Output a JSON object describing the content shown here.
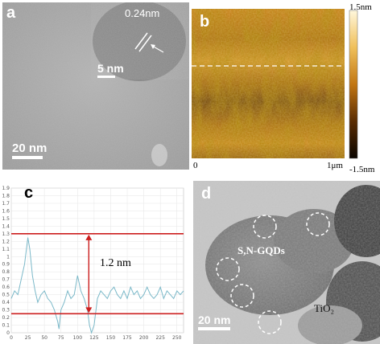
{
  "panel_a": {
    "label": "a",
    "lattice_label": "0.24nm",
    "inset_scale": "5 nm",
    "scale": "20 nm"
  },
  "panel_b": {
    "label": "b",
    "cbar_max": "1.5nm",
    "cbar_min": "-1.5nm",
    "axis_start": "0",
    "axis_end": "1μm"
  },
  "panel_c": {
    "label": "c",
    "annotation": "1.2 nm"
  },
  "panel_d": {
    "label": "d",
    "qd_label": "S,N-GQDs",
    "tio2_label": "TiO₂",
    "scale": "20 nm"
  },
  "chart_data": {
    "type": "line",
    "yticks": [
      "1.9",
      "1.8",
      "1.7",
      "1.6",
      "1.5",
      "1.4",
      "1.3",
      "1.2",
      "1.1",
      "1",
      "0.9",
      "0.8",
      "0.7",
      "0.6",
      "0.5",
      "0.4",
      "0.3",
      "0.2",
      "0.1",
      "0"
    ],
    "xticks": [
      "0",
      "25",
      "50",
      "75",
      "100",
      "125",
      "150",
      "175",
      "200",
      "225",
      "250"
    ],
    "xlim": [
      0,
      260
    ],
    "ylim": [
      0,
      1.9
    ],
    "upper_line": 1.3,
    "lower_line": 0.25,
    "series": [
      {
        "color": "#7ab8c8",
        "x": [
          0,
          5,
          10,
          15,
          20,
          25,
          28,
          32,
          36,
          40,
          45,
          50,
          55,
          60,
          65,
          70,
          72,
          75,
          80,
          85,
          90,
          95,
          100,
          105,
          110,
          115,
          118,
          121,
          125,
          130,
          135,
          140,
          145,
          150,
          155,
          160,
          165,
          170,
          175,
          180,
          185,
          190,
          195,
          200,
          205,
          210,
          215,
          220,
          225,
          230,
          235,
          240,
          245,
          250,
          255,
          260
        ],
        "y": [
          0.45,
          0.55,
          0.5,
          0.7,
          0.9,
          1.25,
          1.1,
          0.75,
          0.55,
          0.4,
          0.5,
          0.55,
          0.45,
          0.4,
          0.3,
          0.15,
          0.05,
          0.3,
          0.4,
          0.55,
          0.45,
          0.5,
          0.75,
          0.55,
          0.45,
          0.3,
          0.1,
          0.0,
          0.1,
          0.45,
          0.55,
          0.5,
          0.45,
          0.55,
          0.6,
          0.5,
          0.45,
          0.55,
          0.45,
          0.6,
          0.5,
          0.55,
          0.45,
          0.5,
          0.6,
          0.5,
          0.45,
          0.5,
          0.6,
          0.45,
          0.55,
          0.5,
          0.45,
          0.55,
          0.5,
          0.55
        ]
      }
    ]
  }
}
